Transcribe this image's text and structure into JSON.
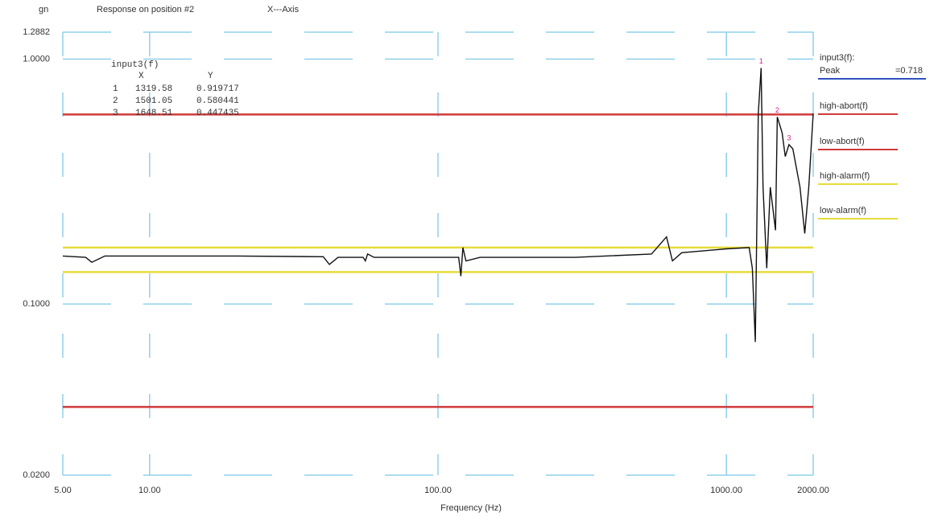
{
  "chart_data": {
    "type": "line",
    "y_unit": "gn",
    "title": "Response on position #2",
    "subtitle": "X---Axis",
    "x_label": "Frequency (Hz)",
    "log_x": true,
    "log_y": true,
    "grid": true,
    "xlim": [
      5,
      2000
    ],
    "ylim": [
      0.02,
      1.2882
    ],
    "xticks": [
      {
        "value": 5,
        "label": "5.00"
      },
      {
        "value": 10,
        "label": "10.00"
      },
      {
        "value": 100,
        "label": "100.00"
      },
      {
        "value": 1000,
        "label": "1000.00"
      },
      {
        "value": 2000,
        "label": "2000.00"
      }
    ],
    "yticks": [
      {
        "value": 0.02,
        "label": "0.0200"
      },
      {
        "value": 0.1,
        "label": "0.1000"
      },
      {
        "value": 1,
        "label": "1.0000"
      },
      {
        "value": 1.2882,
        "label": "1.2882"
      }
    ],
    "series": [
      {
        "name": "input3(f):",
        "color": "#111111",
        "legend_color": "#3050c0",
        "x": [
          5,
          6,
          6.3,
          7,
          10,
          20,
          40,
          42,
          45,
          55,
          56,
          57,
          60,
          100,
          118,
          120,
          122,
          125,
          140,
          300,
          550,
          620,
          650,
          700,
          1000,
          1200,
          1230,
          1260,
          1290,
          1319.58,
          1340,
          1380,
          1420,
          1480,
          1501.05,
          1560,
          1600,
          1648.51,
          1700,
          1800,
          1870,
          1930,
          2000
        ],
        "values": [
          0.157,
          0.155,
          0.148,
          0.157,
          0.157,
          0.157,
          0.156,
          0.145,
          0.155,
          0.155,
          0.15,
          0.16,
          0.155,
          0.155,
          0.155,
          0.13,
          0.17,
          0.15,
          0.155,
          0.155,
          0.16,
          0.188,
          0.15,
          0.162,
          0.168,
          0.17,
          0.14,
          0.07,
          0.6,
          0.919717,
          0.3,
          0.14,
          0.3,
          0.2,
          0.580441,
          0.5,
          0.4,
          0.447435,
          0.43,
          0.3,
          0.194,
          0.3,
          0.6
        ]
      },
      {
        "name": "high-abort(f)",
        "color": "#d03a3a",
        "x": [
          5,
          2000
        ],
        "values": [
          0.594,
          0.594
        ]
      },
      {
        "name": "low-abort(f)",
        "color": "#d03a3a",
        "x": [
          5,
          2000
        ],
        "values": [
          0.038,
          0.038
        ]
      },
      {
        "name": "high-alarm(f)",
        "color": "#e6dc3a",
        "x": [
          5,
          2000
        ],
        "values": [
          0.17,
          0.17
        ]
      },
      {
        "name": "low-alarm(f)",
        "color": "#e6dc3a",
        "x": [
          5,
          2000
        ],
        "values": [
          0.135,
          0.135
        ]
      }
    ],
    "peak": {
      "label": "Peak",
      "value_label": "=0.718"
    },
    "marker_table": {
      "title": "input3(f)",
      "columns": [
        "X",
        "Y"
      ],
      "rows": [
        [
          1,
          1319.58,
          0.919717
        ],
        [
          2,
          1501.05,
          0.580441
        ],
        [
          3,
          1648.51,
          0.447435
        ]
      ]
    }
  }
}
